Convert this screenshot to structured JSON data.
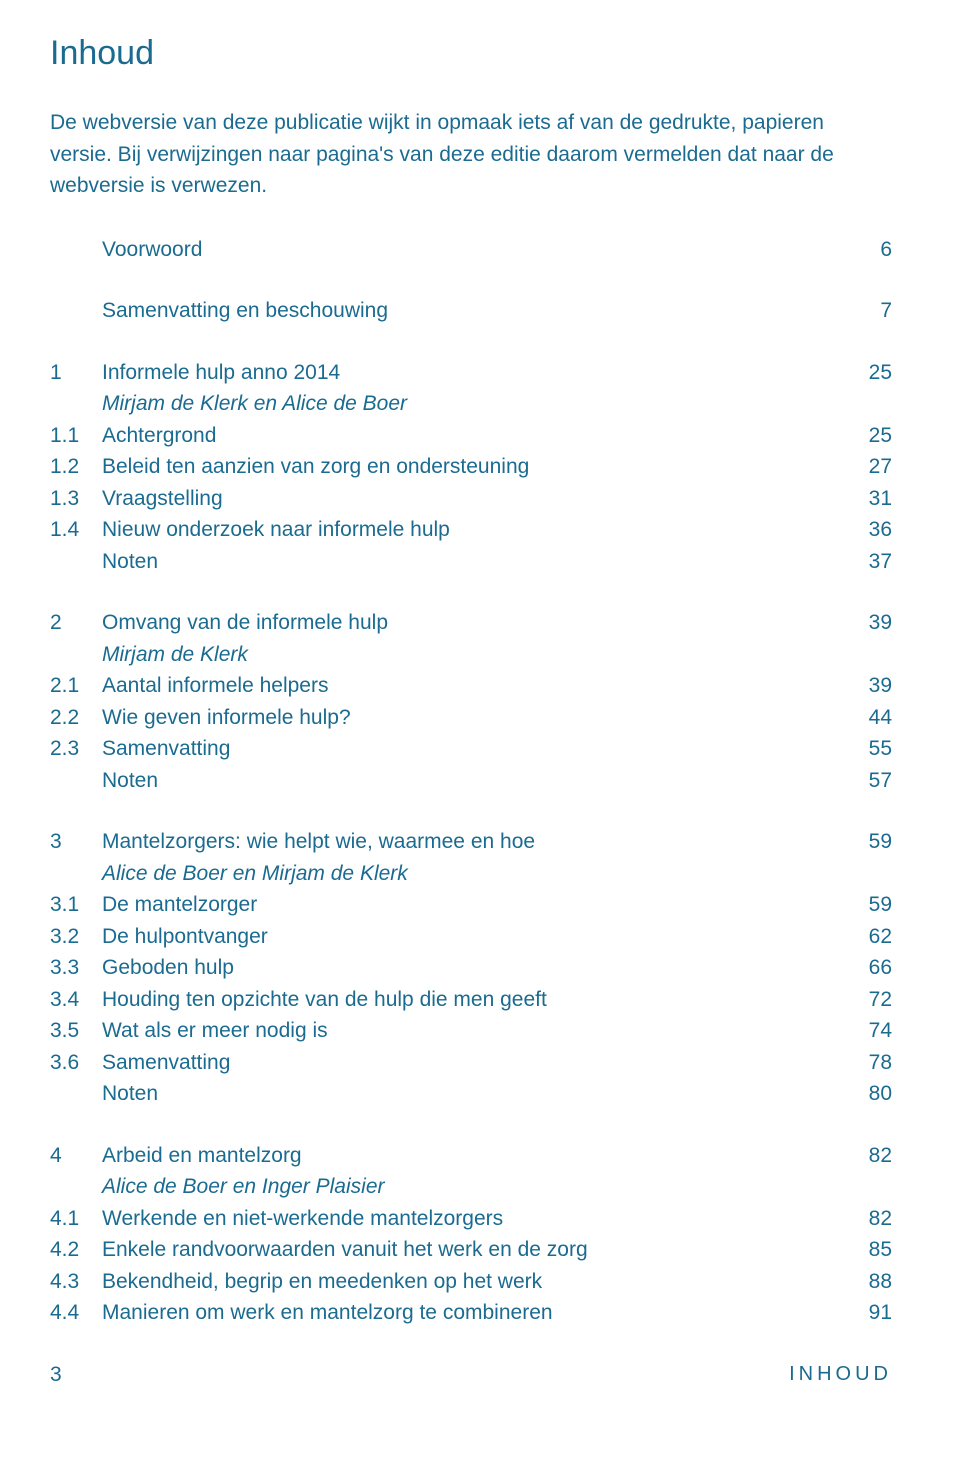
{
  "colors": {
    "text": "#1b6b91",
    "background": "#ffffff"
  },
  "typography": {
    "body_fontsize": 21,
    "heading_fontsize": 34,
    "font_family": "Segoe UI",
    "footer_letterspacing": 4
  },
  "heading": "Inhoud",
  "intro": "De webversie van deze publicatie wijkt in opmaak iets af van de gedrukte, papieren versie. Bij verwijzingen naar pagina's van deze editie daarom vermelden dat naar de webversie is verwezen.",
  "top": [
    {
      "title": "Voorwoord",
      "page": "6"
    },
    {
      "title": "Samenvatting en beschouwing",
      "page": "7"
    }
  ],
  "sections": [
    {
      "rows": [
        {
          "num": "1",
          "title": "Informele hulp anno 2014",
          "page": "25"
        },
        {
          "num": "",
          "title": "Mirjam de Klerk en Alice de Boer",
          "italic": true
        },
        {
          "num": "1.1",
          "title": "Achtergrond",
          "page": "25"
        },
        {
          "num": "1.2",
          "title": "Beleid ten aanzien van zorg en ondersteuning",
          "page": "27"
        },
        {
          "num": "1.3",
          "title": "Vraagstelling",
          "page": "31"
        },
        {
          "num": "1.4",
          "title": "Nieuw onderzoek naar informele hulp",
          "page": "36"
        },
        {
          "num": "",
          "title": "Noten",
          "page": "37"
        }
      ]
    },
    {
      "rows": [
        {
          "num": "2",
          "title": "Omvang van de informele hulp",
          "page": "39"
        },
        {
          "num": "",
          "title": "Mirjam de Klerk",
          "italic": true
        },
        {
          "num": "2.1",
          "title": "Aantal informele helpers",
          "page": "39"
        },
        {
          "num": "2.2",
          "title": "Wie geven informele hulp?",
          "page": "44"
        },
        {
          "num": "2.3",
          "title": "Samenvatting",
          "page": "55"
        },
        {
          "num": "",
          "title": "Noten",
          "page": "57"
        }
      ]
    },
    {
      "rows": [
        {
          "num": "3",
          "title": "Mantelzorgers: wie helpt wie, waarmee en hoe",
          "page": "59"
        },
        {
          "num": "",
          "title": "Alice de Boer en Mirjam de Klerk",
          "italic": true
        },
        {
          "num": "3.1",
          "title": "De mantelzorger",
          "page": "59"
        },
        {
          "num": "3.2",
          "title": "De hulpontvanger",
          "page": "62"
        },
        {
          "num": "3.3",
          "title": "Geboden hulp",
          "page": "66"
        },
        {
          "num": "3.4",
          "title": "Houding ten opzichte van de hulp die men geeft",
          "page": "72"
        },
        {
          "num": "3.5",
          "title": "Wat als er meer nodig is",
          "page": "74"
        },
        {
          "num": "3.6",
          "title": "Samenvatting",
          "page": "78"
        },
        {
          "num": "",
          "title": "Noten",
          "page": "80"
        }
      ]
    },
    {
      "rows": [
        {
          "num": "4",
          "title": "Arbeid en mantelzorg",
          "page": "82"
        },
        {
          "num": "",
          "title": "Alice de Boer en Inger Plaisier",
          "italic": true
        },
        {
          "num": "4.1",
          "title": "Werkende en niet-werkende mantelzorgers",
          "page": "82"
        },
        {
          "num": "4.2",
          "title": "Enkele randvoorwaarden vanuit het werk en de zorg",
          "page": "85"
        },
        {
          "num": "4.3",
          "title": "Bekendheid, begrip en meedenken op het werk",
          "page": "88"
        },
        {
          "num": "4.4",
          "title": "Manieren om werk en mantelzorg te combineren",
          "page": "91"
        }
      ]
    }
  ],
  "footer": {
    "page_number": "3",
    "label": "INHOUD"
  }
}
